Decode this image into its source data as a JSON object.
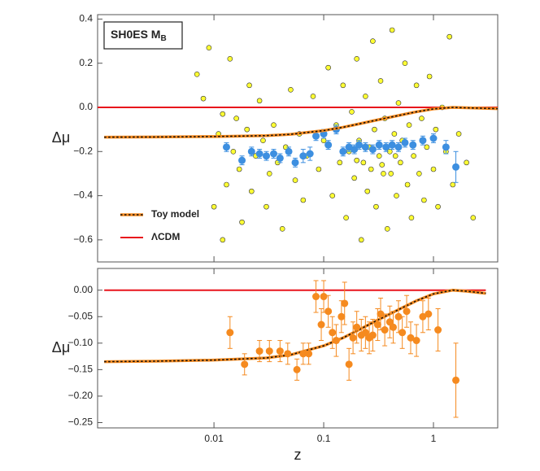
{
  "chart_data": [
    {
      "type": "scatter",
      "title": "SH0ES M",
      "title_subscript": "B",
      "ylabel": "Δμ",
      "xscale": "log",
      "xlim": [
        0.00087,
        3.85
      ],
      "xticks": [
        0.01,
        0.1,
        1
      ],
      "show_xtick_labels": false,
      "ylim": [
        -0.7,
        0.42
      ],
      "yticks": [
        {
          "value": 0.4,
          "label": "0.4"
        },
        {
          "value": 0.2,
          "label": "0.2"
        },
        {
          "value": 0,
          "label": "0.0"
        },
        {
          "value": -0.2,
          "label": "−0.2"
        },
        {
          "value": -0.4,
          "label": "−0.4"
        },
        {
          "value": -0.6,
          "label": "−0.6"
        }
      ],
      "legend": "lower left",
      "series": [
        {
          "mode": "markers",
          "color": "#ffff33",
          "edge": "#333",
          "size": 3,
          "x": [
            0.007,
            0.008,
            0.009,
            0.01,
            0.011,
            0.012,
            0.012,
            0.013,
            0.014,
            0.015,
            0.016,
            0.017,
            0.018,
            0.02,
            0.021,
            0.022,
            0.024,
            0.026,
            0.028,
            0.03,
            0.032,
            0.035,
            0.038,
            0.042,
            0.045,
            0.05,
            0.055,
            0.06,
            0.065,
            0.07,
            0.08,
            0.09,
            0.1,
            0.11,
            0.12,
            0.13,
            0.14,
            0.15,
            0.16,
            0.17,
            0.18,
            0.19,
            0.2,
            0.21,
            0.22,
            0.23,
            0.24,
            0.25,
            0.26,
            0.28,
            0.29,
            0.3,
            0.32,
            0.33,
            0.35,
            0.36,
            0.38,
            0.4,
            0.42,
            0.44,
            0.46,
            0.48,
            0.5,
            0.52,
            0.55,
            0.58,
            0.6,
            0.63,
            0.66,
            0.7,
            0.74,
            0.78,
            0.82,
            0.87,
            0.92,
            1.0,
            1.05,
            1.1,
            1.2,
            1.3,
            1.4,
            1.5,
            1.7,
            2.0,
            2.3,
            0.27,
            0.34,
            0.41,
            0.2,
            0.45
          ],
          "values": [
            0.15,
            0.04,
            0.27,
            -0.45,
            -0.12,
            -0.03,
            -0.6,
            -0.35,
            0.22,
            -0.2,
            -0.05,
            -0.28,
            -0.52,
            -0.1,
            0.1,
            -0.38,
            -0.22,
            0.03,
            -0.15,
            -0.45,
            -0.3,
            -0.08,
            -0.25,
            -0.55,
            -0.18,
            0.08,
            -0.33,
            -0.12,
            -0.42,
            -0.22,
            0.05,
            -0.28,
            -0.15,
            0.18,
            -0.4,
            -0.08,
            -0.25,
            0.1,
            -0.5,
            -0.2,
            -0.02,
            -0.32,
            0.22,
            -0.15,
            -0.6,
            -0.25,
            0.05,
            -0.38,
            -0.18,
            0.3,
            -0.1,
            -0.45,
            -0.22,
            0.12,
            -0.3,
            -0.05,
            -0.55,
            -0.2,
            0.35,
            -0.12,
            -0.4,
            0.02,
            -0.25,
            -0.15,
            0.2,
            -0.35,
            -0.08,
            -0.5,
            -0.22,
            0.1,
            -0.3,
            -0.05,
            -0.42,
            -0.18,
            0.14,
            -0.28,
            -0.1,
            -0.45,
            0.0,
            -0.2,
            0.32,
            -0.35,
            -0.12,
            -0.25,
            -0.5,
            -0.28,
            -0.26,
            -0.3,
            -0.24,
            -0.22
          ]
        },
        {
          "mode": "errorbars",
          "color": "#3d8fe0",
          "size": 4.5,
          "x": [
            0.013,
            0.018,
            0.022,
            0.026,
            0.03,
            0.035,
            0.04,
            0.048,
            0.055,
            0.065,
            0.075,
            0.085,
            0.1,
            0.11,
            0.13,
            0.15,
            0.17,
            0.19,
            0.21,
            0.24,
            0.28,
            0.32,
            0.37,
            0.42,
            0.48,
            0.55,
            0.65,
            0.8,
            1.0,
            1.3,
            1.6
          ],
          "values": [
            -0.18,
            -0.24,
            -0.2,
            -0.21,
            -0.22,
            -0.21,
            -0.23,
            -0.2,
            -0.25,
            -0.22,
            -0.21,
            -0.13,
            -0.12,
            -0.17,
            -0.1,
            -0.2,
            -0.18,
            -0.19,
            -0.17,
            -0.18,
            -0.19,
            -0.17,
            -0.18,
            -0.17,
            -0.18,
            -0.16,
            -0.17,
            -0.15,
            -0.14,
            -0.18,
            -0.27
          ],
          "errors": [
            0.02,
            0.02,
            0.02,
            0.02,
            0.02,
            0.02,
            0.02,
            0.02,
            0.02,
            0.03,
            0.03,
            0.02,
            0.02,
            0.02,
            0.02,
            0.02,
            0.02,
            0.02,
            0.02,
            0.02,
            0.02,
            0.02,
            0.02,
            0.02,
            0.02,
            0.02,
            0.02,
            0.02,
            0.02,
            0.03,
            0.07
          ]
        },
        {
          "mode": "line",
          "name": "ΛCDM",
          "color": "#e8141c",
          "x": [
            0.00087,
            3.85
          ],
          "values": [
            0,
            0
          ]
        },
        {
          "mode": "dashed-line",
          "name": "Toy model",
          "color": "#f58a1f",
          "x": [
            0.001,
            0.003,
            0.01,
            0.03,
            0.05,
            0.1,
            0.15,
            0.2,
            0.3,
            0.5,
            0.7,
            1.0,
            1.5,
            2,
            3.85
          ],
          "values": [
            -0.135,
            -0.134,
            -0.132,
            -0.128,
            -0.122,
            -0.105,
            -0.09,
            -0.077,
            -0.058,
            -0.035,
            -0.02,
            -0.007,
            0.0,
            -0.002,
            -0.006
          ]
        }
      ]
    },
    {
      "type": "scatter",
      "ylabel": "Δμ",
      "xlabel": "z",
      "xscale": "log",
      "xlim": [
        0.00087,
        3.85
      ],
      "xticks": [
        0.01,
        0.1,
        1
      ],
      "show_xtick_labels": true,
      "ylim": [
        -0.26,
        0.041
      ],
      "yticks": [
        {
          "value": 0,
          "label": "0.00"
        },
        {
          "value": -0.05,
          "label": "−0.05"
        },
        {
          "value": -0.1,
          "label": "−0.10"
        },
        {
          "value": -0.15,
          "label": "−0.15"
        },
        {
          "value": -0.2,
          "label": "−0.20"
        },
        {
          "value": -0.25,
          "label": "−0.25"
        }
      ],
      "series": [
        {
          "mode": "line",
          "color": "#e8141c",
          "x": [
            0.001,
            3
          ],
          "values": [
            0,
            0
          ]
        },
        {
          "mode": "dashed-line",
          "color": "#f58a1f",
          "x": [
            0.001,
            0.003,
            0.01,
            0.03,
            0.05,
            0.1,
            0.15,
            0.2,
            0.3,
            0.5,
            0.7,
            1.0,
            1.5,
            2,
            3
          ],
          "values": [
            -0.135,
            -0.134,
            -0.132,
            -0.128,
            -0.122,
            -0.105,
            -0.09,
            -0.077,
            -0.058,
            -0.035,
            -0.02,
            -0.007,
            0.0,
            -0.002,
            -0.006
          ]
        },
        {
          "mode": "errorbars",
          "color": "#f58a1f",
          "size": 4.5,
          "x": [
            0.014,
            0.019,
            0.026,
            0.032,
            0.04,
            0.047,
            0.057,
            0.065,
            0.073,
            0.085,
            0.095,
            0.1,
            0.11,
            0.12,
            0.13,
            0.145,
            0.155,
            0.17,
            0.185,
            0.2,
            0.22,
            0.24,
            0.26,
            0.28,
            0.31,
            0.33,
            0.36,
            0.4,
            0.43,
            0.48,
            0.52,
            0.57,
            0.62,
            0.7,
            0.8,
            0.9,
            1.1,
            1.6
          ],
          "values": [
            -0.08,
            -0.14,
            -0.115,
            -0.115,
            -0.115,
            -0.12,
            -0.15,
            -0.12,
            -0.12,
            -0.012,
            -0.065,
            -0.012,
            -0.04,
            -0.08,
            -0.095,
            -0.05,
            -0.025,
            -0.14,
            -0.09,
            -0.07,
            -0.085,
            -0.08,
            -0.09,
            -0.085,
            -0.065,
            -0.045,
            -0.075,
            -0.06,
            -0.07,
            -0.05,
            -0.08,
            -0.04,
            -0.09,
            -0.095,
            -0.05,
            -0.045,
            -0.075,
            -0.17
          ],
          "errors": [
            0.03,
            0.02,
            0.02,
            0.02,
            0.02,
            0.02,
            0.02,
            0.02,
            0.02,
            0.03,
            0.03,
            0.03,
            0.03,
            0.03,
            0.03,
            0.03,
            0.04,
            0.03,
            0.03,
            0.03,
            0.03,
            0.03,
            0.03,
            0.03,
            0.03,
            0.03,
            0.03,
            0.03,
            0.03,
            0.03,
            0.03,
            0.03,
            0.03,
            0.03,
            0.03,
            0.03,
            0.04,
            0.07
          ]
        }
      ]
    }
  ]
}
